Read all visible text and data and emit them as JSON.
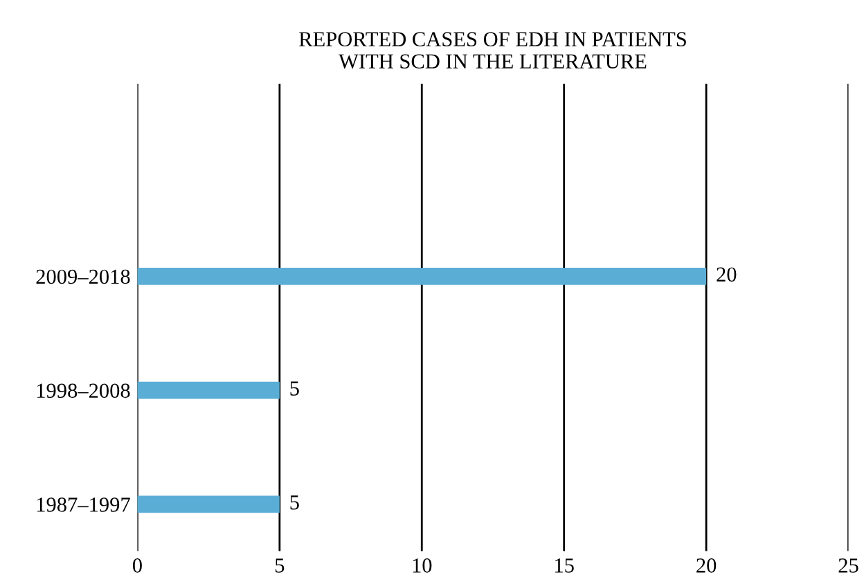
{
  "chart_data": {
    "type": "bar",
    "orientation": "horizontal",
    "title": "REPORTED CASES OF EDH IN PATIENTS\nWITH SCD IN THE LITERATURE",
    "categories": [
      "2009–2018",
      "1998–2008",
      "1987–1997"
    ],
    "values": [
      20,
      5,
      5
    ],
    "color": "#5aaed6",
    "xlim": [
      0,
      25
    ],
    "xticks": [
      0,
      5,
      10,
      15,
      20,
      25
    ],
    "grid": "x",
    "data_labels": true
  }
}
